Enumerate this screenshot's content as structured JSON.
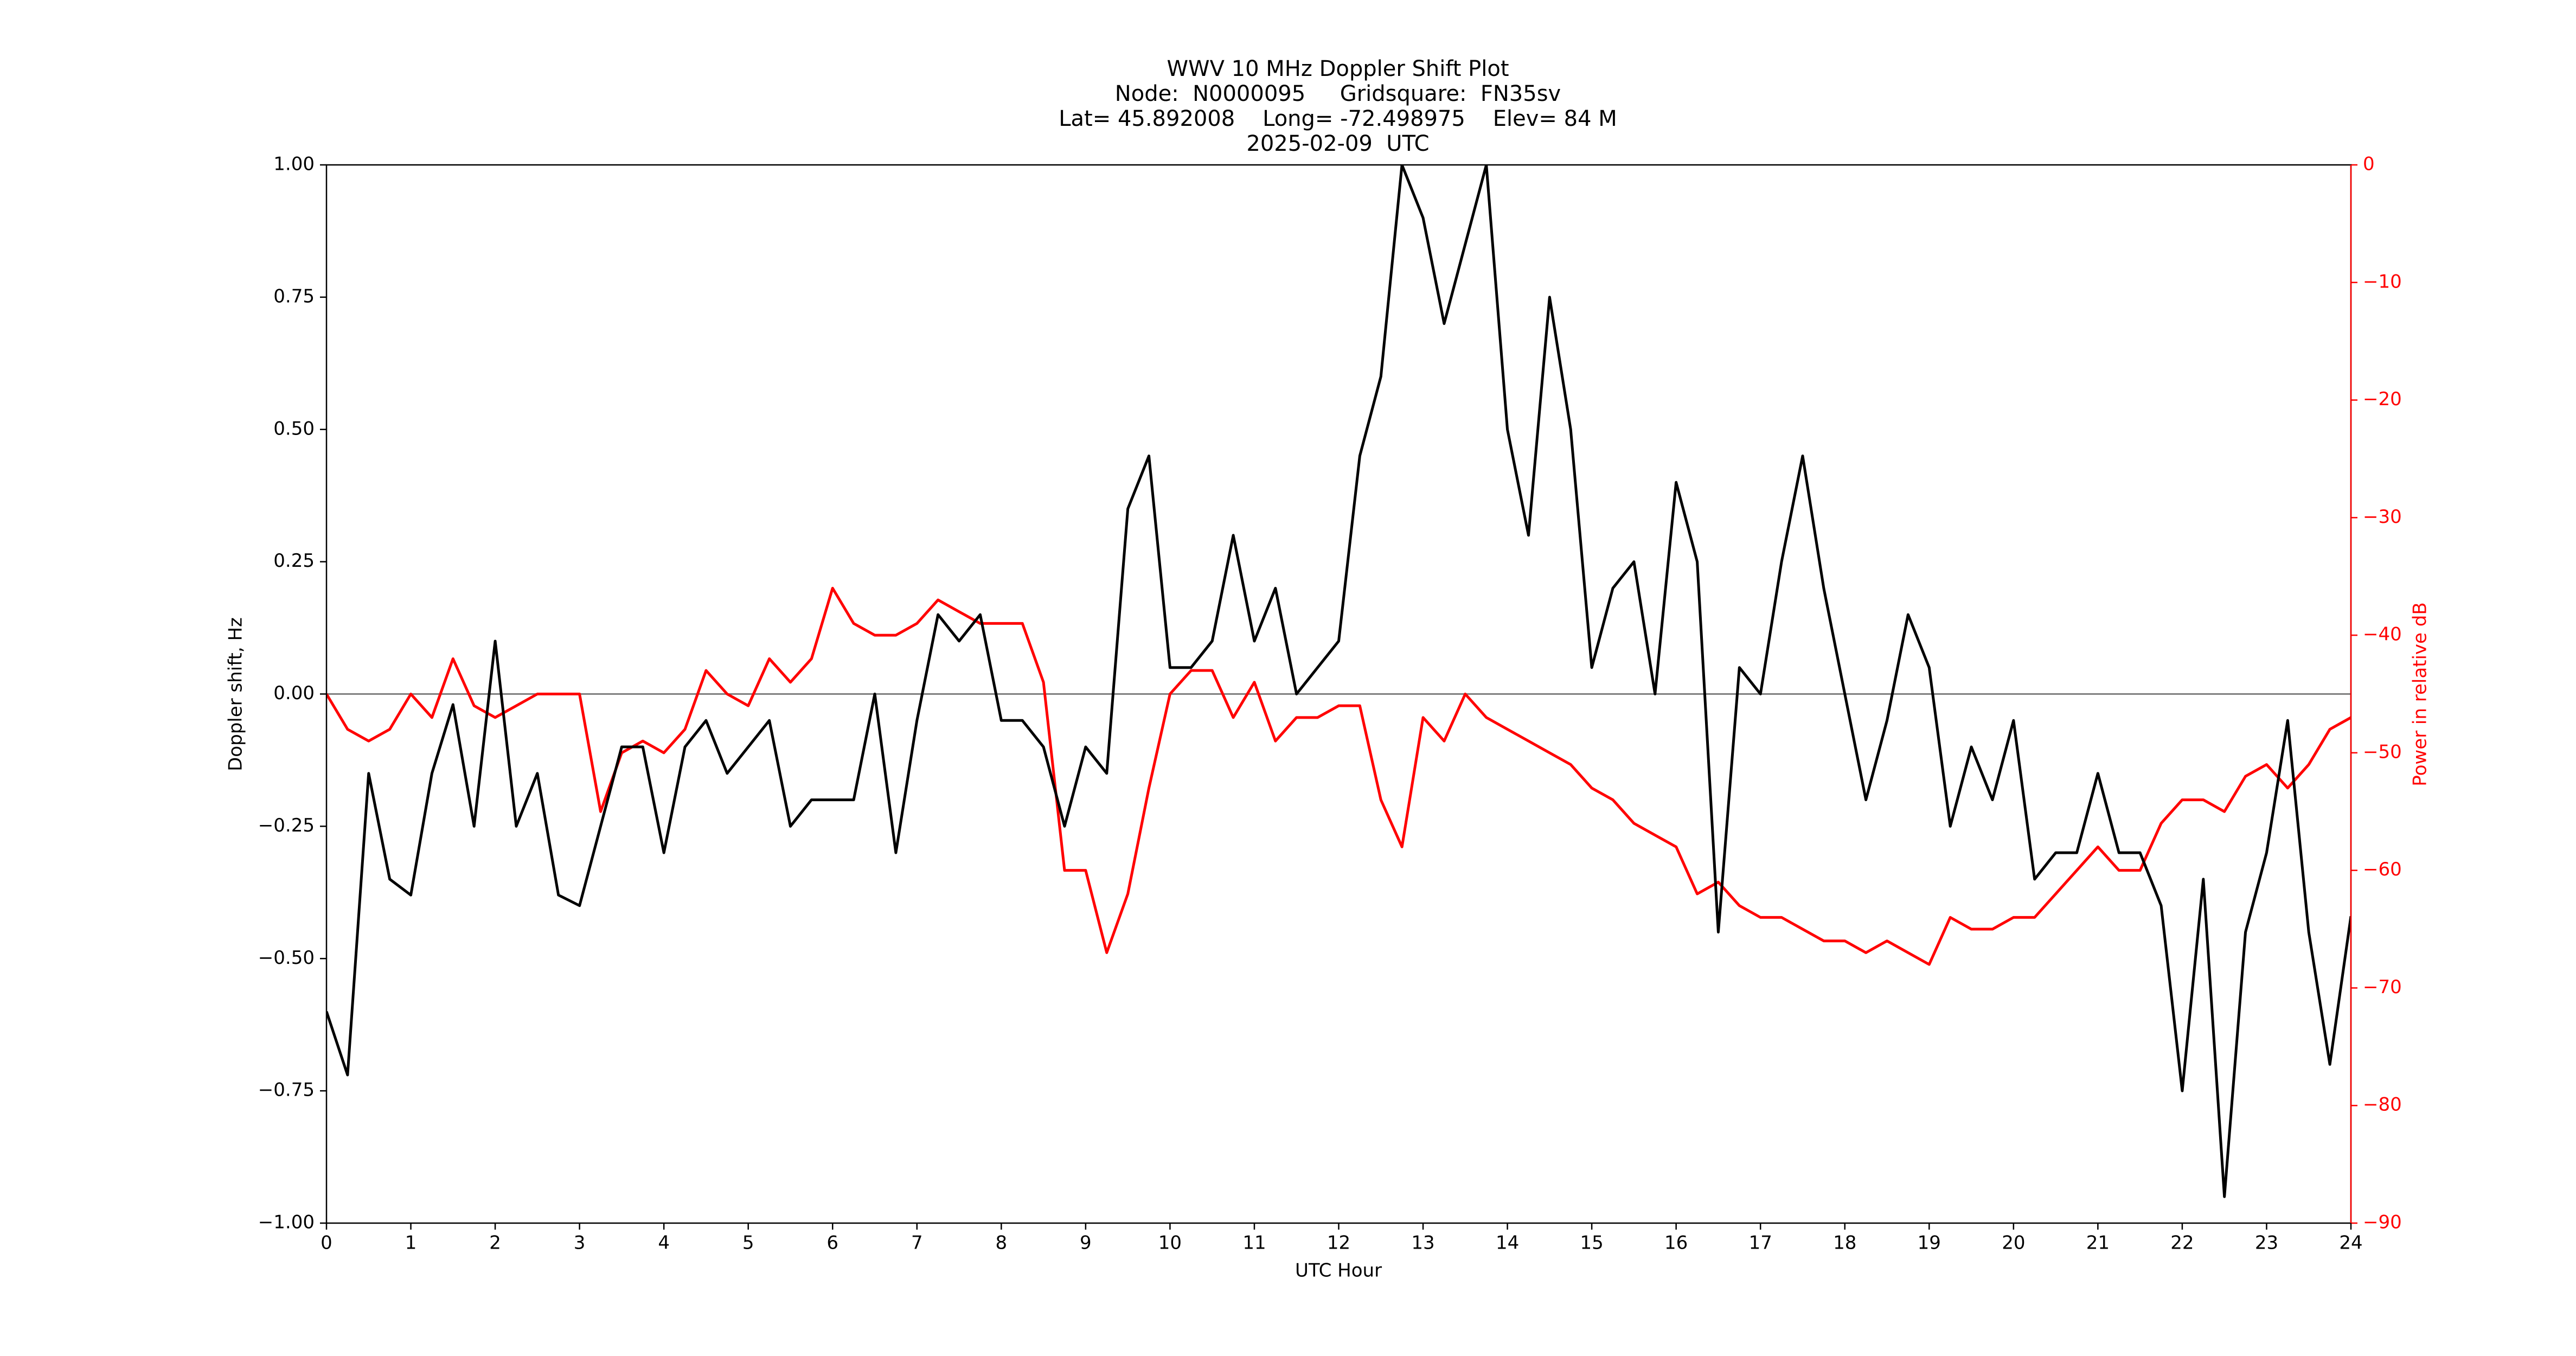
{
  "chart_data": {
    "type": "line",
    "title": [
      "WWV 10 MHz Doppler Shift Plot",
      "Node:  N0000095     Gridsquare:  FN35sv",
      "Lat= 45.892008    Long= -72.498975    Elev= 84 M",
      "2025-02-09  UTC"
    ],
    "x_label": "UTC Hour",
    "y_label": "Doppler shift, Hz",
    "y2_label": "Power in relative dB",
    "x": [
      0,
      0.25,
      0.5,
      0.75,
      1,
      1.25,
      1.5,
      1.75,
      2,
      2.25,
      2.5,
      2.75,
      3,
      3.25,
      3.5,
      3.75,
      4,
      4.25,
      4.5,
      4.75,
      5,
      5.25,
      5.5,
      5.75,
      6,
      6.25,
      6.5,
      6.75,
      7,
      7.25,
      7.5,
      7.75,
      8,
      8.25,
      8.5,
      8.75,
      9,
      9.25,
      9.5,
      9.75,
      10,
      10.25,
      10.5,
      10.75,
      11,
      11.25,
      11.5,
      11.75,
      12,
      12.25,
      12.5,
      12.75,
      13,
      13.25,
      13.5,
      13.75,
      14,
      14.25,
      14.5,
      14.75,
      15,
      15.25,
      15.5,
      15.75,
      16,
      16.25,
      16.5,
      16.75,
      17,
      17.25,
      17.5,
      17.75,
      18,
      18.25,
      18.5,
      18.75,
      19,
      19.25,
      19.5,
      19.75,
      20,
      20.25,
      20.5,
      20.75,
      21,
      21.25,
      21.5,
      21.75,
      22,
      22.25,
      22.5,
      22.75,
      23,
      23.25,
      23.5,
      23.75,
      24
    ],
    "series": [
      {
        "name": "Doppler shift",
        "color": "#000000",
        "values": [
          -0.6,
          -0.72,
          -0.15,
          -0.35,
          -0.38,
          -0.15,
          -0.02,
          -0.25,
          0.1,
          -0.25,
          -0.15,
          -0.38,
          -0.4,
          -0.25,
          -0.1,
          -0.1,
          -0.3,
          -0.1,
          -0.05,
          -0.15,
          -0.1,
          -0.05,
          -0.25,
          -0.2,
          -0.2,
          -0.2,
          0.0,
          -0.3,
          -0.05,
          0.15,
          0.1,
          0.15,
          -0.05,
          -0.05,
          -0.1,
          -0.25,
          -0.1,
          -0.15,
          0.35,
          0.45,
          0.05,
          0.05,
          0.1,
          0.3,
          0.1,
          0.2,
          0.0,
          0.05,
          0.1,
          0.45,
          0.6,
          1.0,
          0.9,
          0.7,
          0.85,
          1.0,
          0.5,
          0.3,
          0.75,
          0.5,
          0.05,
          0.2,
          0.25,
          0.0,
          0.4,
          0.25,
          -0.45,
          0.05,
          0.0,
          0.25,
          0.45,
          0.2,
          0.0,
          -0.2,
          -0.05,
          0.15,
          0.05,
          -0.25,
          -0.1,
          -0.2,
          -0.05,
          -0.35,
          -0.3,
          -0.3,
          -0.15,
          -0.3,
          -0.3,
          -0.4,
          -0.75,
          -0.35,
          -0.95,
          -0.45,
          -0.3,
          -0.05,
          -0.45,
          -0.7,
          -0.42
        ]
      },
      {
        "name": "Power",
        "color": "#ff0000",
        "axis": "y2",
        "values": [
          -45,
          -48,
          -49,
          -48,
          -45,
          -47,
          -42,
          -46,
          -47,
          -46,
          -45,
          -45,
          -45,
          -55,
          -50,
          -49,
          -50,
          -48,
          -43,
          -45,
          -46,
          -42,
          -44,
          -42,
          -36,
          -39,
          -40,
          -40,
          -39,
          -37,
          -38,
          -39,
          -39,
          -39,
          -44,
          -60,
          -60,
          -67,
          -62,
          -53,
          -45,
          -43,
          -43,
          -47,
          -44,
          -49,
          -47,
          -47,
          -46,
          -46,
          -54,
          -58,
          -47,
          -49,
          -45,
          -47,
          -48,
          -49,
          -50,
          -51,
          -53,
          -54,
          -56,
          -57,
          -58,
          -62,
          -61,
          -63,
          -64,
          -64,
          -65,
          -66,
          -66,
          -67,
          -66,
          -67,
          -68,
          -64,
          -65,
          -65,
          -64,
          -64,
          -62,
          -60,
          -58,
          -60,
          -60,
          -56,
          -54,
          -54,
          -55,
          -52,
          -51,
          -53,
          -51,
          -48,
          -47
        ]
      }
    ],
    "xlim": [
      0,
      24
    ],
    "xticks": [
      0,
      1,
      2,
      3,
      4,
      5,
      6,
      7,
      8,
      9,
      10,
      11,
      12,
      13,
      14,
      15,
      16,
      17,
      18,
      19,
      20,
      21,
      22,
      23,
      24
    ],
    "ylim": [
      -1,
      1
    ],
    "yticks": [
      {
        "value": -1,
        "label": "−1.00"
      },
      {
        "value": -0.75,
        "label": "−0.75"
      },
      {
        "value": -0.5,
        "label": "−0.50"
      },
      {
        "value": -0.25,
        "label": "−0.25"
      },
      {
        "value": 0,
        "label": "0.00"
      },
      {
        "value": 0.25,
        "label": "0.25"
      },
      {
        "value": 0.5,
        "label": "0.50"
      },
      {
        "value": 0.75,
        "label": "0.75"
      },
      {
        "value": 1,
        "label": "1.00"
      }
    ],
    "y2lim": [
      -90,
      0
    ],
    "y2ticks": [
      {
        "value": -90,
        "label": "−90"
      },
      {
        "value": -80,
        "label": "−80"
      },
      {
        "value": -70,
        "label": "−70"
      },
      {
        "value": -60,
        "label": "−60"
      },
      {
        "value": -50,
        "label": "−50"
      },
      {
        "value": -40,
        "label": "−40"
      },
      {
        "value": -30,
        "label": "−30"
      },
      {
        "value": -20,
        "label": "−20"
      },
      {
        "value": -10,
        "label": "−10"
      },
      0
    ],
    "y2_color": "#ff0000",
    "zero_line": {
      "value": 0,
      "color": "#808080"
    }
  }
}
